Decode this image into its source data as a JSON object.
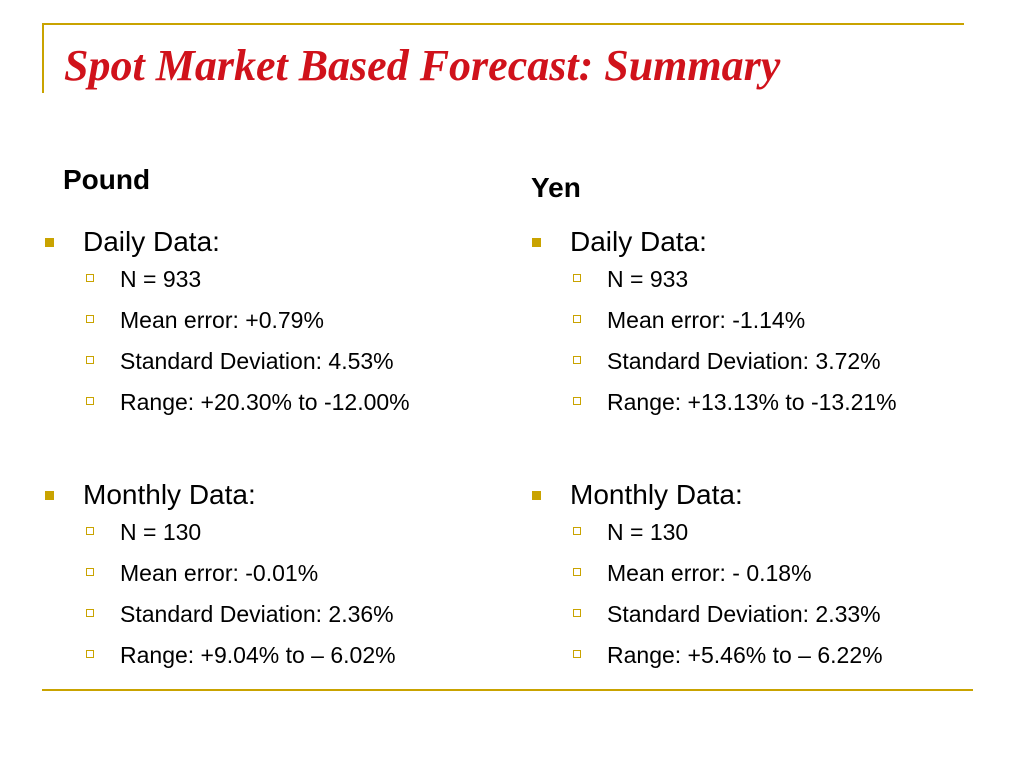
{
  "title": "Spot Market Based Forecast: Summary",
  "columns": [
    {
      "heading": "Pound",
      "sections": [
        {
          "label": "Daily Data:",
          "items": [
            "N = 933",
            "Mean error: +0.79%",
            "Standard Deviation: 4.53%",
            "Range: +20.30% to -12.00%"
          ]
        },
        {
          "label": "Monthly Data:",
          "items": [
            "N = 130",
            "Mean error: -0.01%",
            "Standard Deviation: 2.36%",
            "Range:  +9.04% to – 6.02%"
          ]
        }
      ]
    },
    {
      "heading": "Yen",
      "sections": [
        {
          "label": "Daily Data:",
          "items": [
            "N = 933",
            "Mean error: -1.14%",
            "Standard Deviation: 3.72%",
            "Range: +13.13% to -13.21%"
          ]
        },
        {
          "label": "Monthly Data:",
          "items": [
            "N = 130",
            "Mean error: - 0.18%",
            "Standard Deviation: 2.33%",
            "Range:  +5.46% to – 6.22%"
          ]
        }
      ]
    }
  ],
  "colors": {
    "title": "#d0121b",
    "accent": "#c9a300",
    "text": "#000000"
  },
  "icons": {
    "section_bullet": "square-bullet-icon",
    "item_bullet": "hollow-square-bullet-icon"
  }
}
